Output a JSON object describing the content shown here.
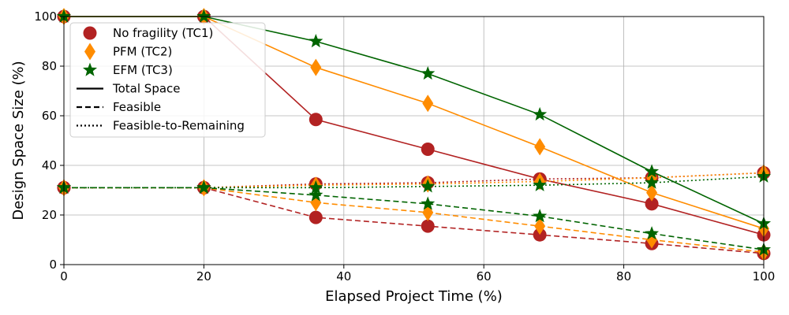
{
  "chart_data": {
    "type": "line",
    "title": "",
    "xlabel": "Elapsed Project Time (%)",
    "ylabel": "Design Space Size (%)",
    "xlim": [
      0,
      100
    ],
    "ylim": [
      0,
      100
    ],
    "x_ticks": [
      0,
      20,
      40,
      60,
      80,
      100
    ],
    "y_ticks": [
      0,
      20,
      40,
      60,
      80,
      100
    ],
    "grid": true,
    "legend_position": "top-left",
    "x": [
      0,
      20,
      36,
      52,
      68,
      84,
      100
    ],
    "series": [
      {
        "name": "No fragility (TC1)",
        "marker": "circle",
        "color": "#b22222",
        "line_style": "Total Space",
        "values": [
          100,
          100,
          58.5,
          46.5,
          34.5,
          24.5,
          12
        ]
      },
      {
        "name": "No fragility (TC1)",
        "marker": "circle",
        "color": "#b22222",
        "line_style": "Feasible",
        "values": [
          31,
          31,
          19,
          15.5,
          12,
          8.5,
          4.5
        ]
      },
      {
        "name": "No fragility (TC1)",
        "marker": "circle",
        "color": "#b22222",
        "line_style": "Feasible-to-Remaining",
        "values": [
          31,
          31,
          32.5,
          33,
          34.5,
          35,
          37
        ]
      },
      {
        "name": "PFM (TC2)",
        "marker": "diamond",
        "color": "#ff8c00",
        "line_style": "Total Space",
        "values": [
          100,
          100,
          79.5,
          65,
          47.5,
          29,
          14.5
        ]
      },
      {
        "name": "PFM (TC2)",
        "marker": "diamond",
        "color": "#ff8c00",
        "line_style": "Feasible",
        "values": [
          31,
          31,
          25,
          21,
          15.5,
          10,
          5
        ]
      },
      {
        "name": "PFM (TC2)",
        "marker": "diamond",
        "color": "#ff8c00",
        "line_style": "Feasible-to-Remaining",
        "values": [
          31,
          31,
          32,
          32.5,
          33.5,
          35,
          37
        ]
      },
      {
        "name": "EFM (TC3)",
        "marker": "star",
        "color": "#006400",
        "line_style": "Total Space",
        "values": [
          100,
          100,
          90,
          77,
          60.5,
          37.5,
          16.5
        ]
      },
      {
        "name": "EFM (TC3)",
        "marker": "star",
        "color": "#006400",
        "line_style": "Feasible",
        "values": [
          31,
          31,
          28,
          24.5,
          19.5,
          12.5,
          6
        ]
      },
      {
        "name": "EFM (TC3)",
        "marker": "star",
        "color": "#006400",
        "line_style": "Feasible-to-Remaining",
        "values": [
          31,
          31,
          31,
          31.5,
          32,
          33,
          35.5
        ]
      }
    ],
    "legend": {
      "markers": [
        {
          "label": "No fragility (TC1)",
          "marker": "circle",
          "color": "#b22222"
        },
        {
          "label": "PFM (TC2)",
          "marker": "diamond",
          "color": "#ff8c00"
        },
        {
          "label": "EFM (TC3)",
          "marker": "star",
          "color": "#006400"
        }
      ],
      "line_styles": [
        {
          "label": "Total Space",
          "dash": "solid"
        },
        {
          "label": "Feasible",
          "dash": "dashed"
        },
        {
          "label": "Feasible-to-Remaining",
          "dash": "dotted"
        }
      ]
    }
  }
}
